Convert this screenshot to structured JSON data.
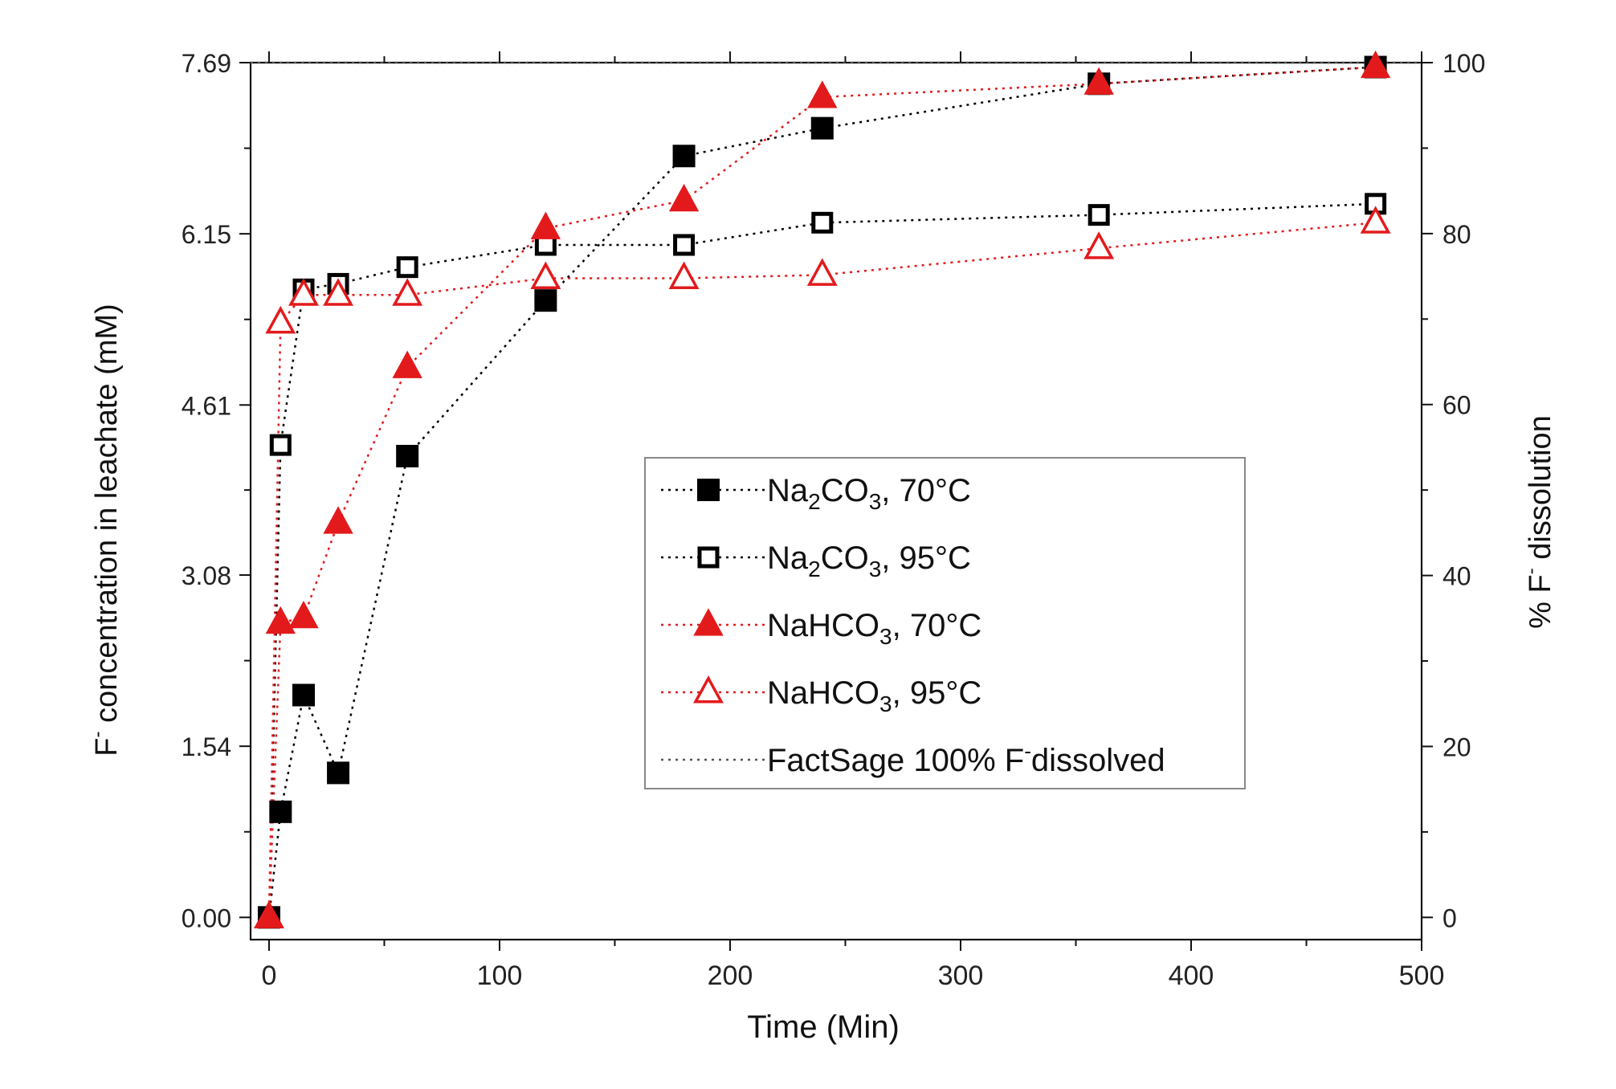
{
  "chart_data": {
    "type": "scatter",
    "xlabel": "Time (Min)",
    "ylabel_main": "F",
    "ylabel_sup": "-",
    "ylabel_rest": " concentration in leachate (mM)",
    "y2label_main": "% F",
    "y2label_sup": "-",
    "y2label_rest": " dissolution",
    "xlim": [
      -8,
      500
    ],
    "ylim": [
      -0.2,
      7.69
    ],
    "y2lim": [
      -2.6,
      100
    ],
    "x_ticks": [
      0,
      100,
      200,
      300,
      400,
      500
    ],
    "x_tick_labels": [
      "0",
      "100",
      "200",
      "300",
      "400",
      "500"
    ],
    "y_ticks": [
      0.0,
      1.54,
      3.08,
      4.61,
      6.15,
      7.69
    ],
    "y_tick_labels": [
      "0.00",
      "1.54",
      "3.08",
      "4.61",
      "6.15",
      "7.69"
    ],
    "y2_ticks": [
      0,
      20,
      40,
      60,
      80,
      100
    ],
    "y2_tick_labels": [
      "0",
      "20",
      "40",
      "60",
      "80",
      "100"
    ],
    "reference_line": {
      "y": 7.69,
      "color": "#555555",
      "label": "FactSage 100% F",
      "label_sup": "-",
      "label_rest": "dissolved"
    },
    "series": [
      {
        "name": "Na2CO3, 70°C",
        "label_a": "Na",
        "label_sub1": "2",
        "label_b": "CO",
        "label_sub2": "3",
        "label_c": ", 70°C",
        "marker": "square-filled",
        "color": "#000000",
        "x": [
          0,
          5,
          15,
          30,
          60,
          120,
          180,
          240,
          360,
          480
        ],
        "y": [
          0.0,
          0.95,
          2.0,
          1.3,
          4.15,
          5.55,
          6.85,
          7.1,
          7.5,
          7.65
        ]
      },
      {
        "name": "Na2CO3, 95°C",
        "label_a": "Na",
        "label_sub1": "2",
        "label_b": "CO",
        "label_sub2": "3",
        "label_c": ",  95°C",
        "marker": "square-open",
        "color": "#000000",
        "x": [
          0,
          5,
          15,
          30,
          60,
          120,
          180,
          240,
          360,
          480
        ],
        "y": [
          0.0,
          4.25,
          5.65,
          5.7,
          5.85,
          6.05,
          6.05,
          6.25,
          6.32,
          6.42
        ]
      },
      {
        "name": "NaHCO3, 70°C",
        "label_a": "NaHCO",
        "label_sub1": "3",
        "label_b": "",
        "label_sub2": "",
        "label_c": ",  70°C",
        "marker": "triangle-filled",
        "color": "#e31a1c",
        "x": [
          0,
          5,
          15,
          30,
          60,
          120,
          180,
          240,
          360,
          480
        ],
        "y": [
          0.0,
          2.65,
          2.7,
          3.55,
          4.95,
          6.2,
          6.45,
          7.38,
          7.5,
          7.65
        ]
      },
      {
        "name": "NaHCO3, 95°C",
        "label_a": "NaHCO",
        "label_sub1": "3",
        "label_b": "",
        "label_sub2": "",
        "label_c": ",  95°C",
        "marker": "triangle-open",
        "color": "#e31a1c",
        "x": [
          0,
          5,
          15,
          30,
          60,
          120,
          180,
          240,
          360,
          480
        ],
        "y": [
          0.0,
          5.35,
          5.6,
          5.6,
          5.6,
          5.75,
          5.75,
          5.78,
          6.02,
          6.25
        ]
      }
    ]
  }
}
